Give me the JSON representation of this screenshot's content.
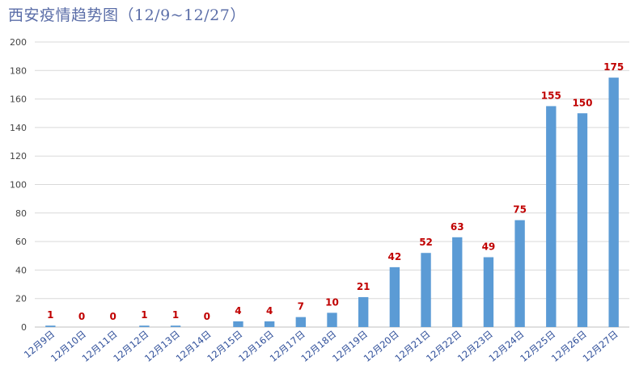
{
  "chart_data": {
    "type": "bar",
    "title": "西安疫情趋势图（12/9~12/27）",
    "categories": [
      "12月9日",
      "12月10日",
      "12月11日",
      "12月12日",
      "12月13日",
      "12月14日",
      "12月15日",
      "12月16日",
      "12月17日",
      "12月18日",
      "12月19日",
      "12月20日",
      "12月21日",
      "12月22日",
      "12月23日",
      "12月24日",
      "12月25日",
      "12月26日",
      "12月27日"
    ],
    "values": [
      1,
      0,
      0,
      1,
      1,
      0,
      4,
      4,
      7,
      10,
      21,
      42,
      52,
      63,
      49,
      75,
      155,
      150,
      175
    ],
    "data_labels": [
      "1",
      "0",
      "0",
      "1",
      "1",
      "0",
      "4",
      "4",
      "7",
      "10",
      "21",
      "42",
      "52",
      "63",
      "49",
      "75",
      "155",
      "150",
      "175"
    ],
    "ylim": [
      0,
      200
    ],
    "yticks": [
      0,
      20,
      40,
      60,
      80,
      100,
      120,
      140,
      160,
      180,
      200
    ],
    "grid": true,
    "legend": "none",
    "xlabel": "",
    "ylabel": ""
  },
  "colors": {
    "bar": "#5b9bd5",
    "data_label": "#c00000",
    "title": "#5b6ea8",
    "grid": "#d9d9d9",
    "axis": "#bfbfbf"
  }
}
